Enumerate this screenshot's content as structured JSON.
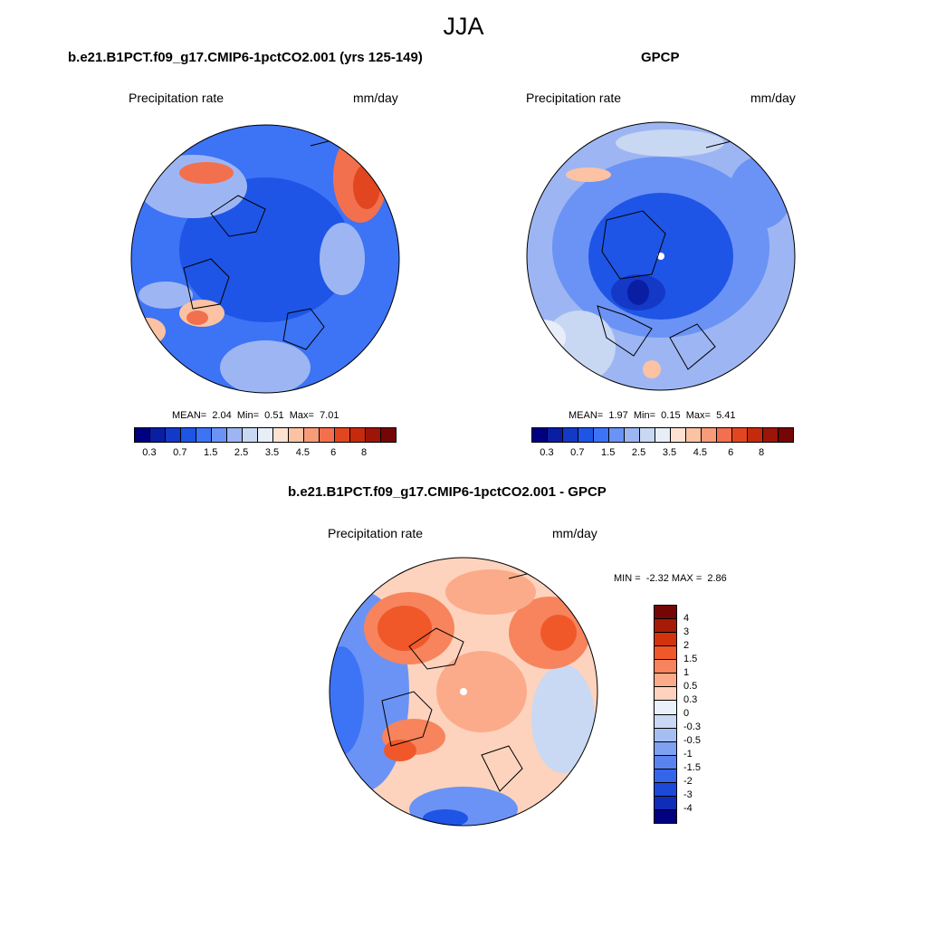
{
  "season": "JJA",
  "panels": [
    {
      "title": "b.e21.B1PCT.f09_g17.CMIP6-1pctCO2.001 (yrs 125-149)",
      "variable": "Precipitation rate",
      "units": "mm/day",
      "mean_label": "MEAN=",
      "mean": "2.04",
      "min_label": "Min=",
      "min": "0.51",
      "max_label": "Max=",
      "max": "7.01"
    },
    {
      "title": "GPCP",
      "variable": "Precipitation rate",
      "units": "mm/day",
      "mean_label": "MEAN=",
      "mean": "1.97",
      "min_label": "Min=",
      "min": "0.15",
      "max_label": "Max=",
      "max": "5.41"
    }
  ],
  "diff_panel": {
    "title": "b.e21.B1PCT.f09_g17.CMIP6-1pctCO2.001 - GPCP",
    "variable": "Precipitation rate",
    "units": "mm/day",
    "min_label": "MIN =",
    "min": "-2.32",
    "max_label": "MAX =",
    "max": "2.86"
  },
  "abs_colorbar": {
    "colors": [
      "#000080",
      "#0a1ea3",
      "#1439c6",
      "#1e55e6",
      "#3d73f5",
      "#6b93f5",
      "#9db6f3",
      "#c8d7f2",
      "#e8eef8",
      "#fde2d2",
      "#fbc2a4",
      "#f79b78",
      "#f2704e",
      "#e24620",
      "#c52a0d",
      "#9c1508",
      "#750606"
    ],
    "ticks": [
      "0.3",
      "0.7",
      "1.5",
      "2.5",
      "3.5",
      "4.5",
      "6",
      "8"
    ]
  },
  "diff_colorbar": {
    "colors": [
      "#750606",
      "#a51b08",
      "#d2330c",
      "#f0582a",
      "#f7845c",
      "#fbab8a",
      "#fdd3bd",
      "#eaf1fa",
      "#c9d8f3",
      "#a6bff2",
      "#7fa1f2",
      "#5a83ef",
      "#3565e8",
      "#1c49d9",
      "#0f2db8",
      "#000080"
    ],
    "ticks": [
      "4",
      "3",
      "2",
      "1.5",
      "1",
      "0.5",
      "0.3",
      "0",
      "-0.3",
      "-0.5",
      "-1",
      "-1.5",
      "-2",
      "-3",
      "-4"
    ]
  },
  "map_colors": {
    "ocean_blue": "#3d73f5",
    "deep_blue": "#1e55e6",
    "light_blue": "#9db6f3",
    "pale": "#e8eef8",
    "orange": "#f2704e",
    "red": "#e24620",
    "light_orange": "#fbc2a4",
    "diff_orange": "#f7845c",
    "diff_pale": "#fdd3bd"
  }
}
